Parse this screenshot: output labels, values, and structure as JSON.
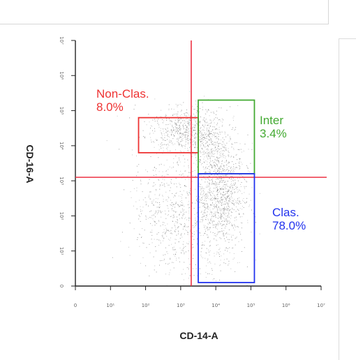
{
  "chart_data": {
    "type": "scatter",
    "xlabel": "CD-14-A",
    "ylabel": "CD-16-A",
    "x_ticks": [
      "0",
      "10¹",
      "10²",
      "10³",
      "10⁴",
      "10⁵",
      "10⁶",
      "10⁷"
    ],
    "y_ticks": [
      "0",
      "10¹",
      "10²",
      "10³",
      "10⁴",
      "10⁵",
      "10⁶",
      "10⁷"
    ],
    "quadrant_lines": {
      "x": 3.3,
      "y": 3.1
    },
    "gates": [
      {
        "name": "Non-Clas.",
        "percent": "8.0%",
        "color": "#ee3333",
        "x": [
          1.8,
          3.5
        ],
        "y": [
          3.8,
          4.8
        ]
      },
      {
        "name": "Inter",
        "percent": "3.4%",
        "color": "#44aa33",
        "x": [
          3.5,
          5.1
        ],
        "y": [
          3.2,
          5.3
        ]
      },
      {
        "name": "Clas.",
        "percent": "78.0%",
        "color": "#2233ee",
        "x": [
          3.5,
          5.1
        ],
        "y": [
          0.1,
          3.2
        ]
      }
    ],
    "populations": [
      {
        "cx": 3.1,
        "cy": 4.45,
        "sx": 0.55,
        "sy": 0.35,
        "n": 650
      },
      {
        "cx": 4.15,
        "cy": 2.6,
        "sx": 0.35,
        "sy": 0.75,
        "n": 1000
      },
      {
        "cx": 2.75,
        "cy": 2.2,
        "sx": 0.55,
        "sy": 0.8,
        "n": 550
      },
      {
        "cx": 3.9,
        "cy": 4.0,
        "sx": 0.3,
        "sy": 0.4,
        "n": 250
      },
      {
        "cx": 3.5,
        "cy": 1.0,
        "sx": 0.7,
        "sy": 0.7,
        "n": 200
      }
    ],
    "xlim": [
      0,
      7
    ],
    "ylim": [
      0,
      7
    ]
  }
}
